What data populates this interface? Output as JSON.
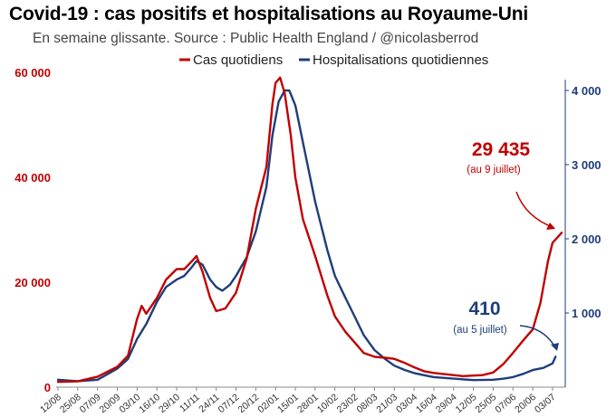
{
  "header": {
    "title": "Covid-19 : cas positifs et hospitalisations au Royaume-Uni",
    "subtitle": "En semaine glissante. Source : Public Health England / @nicolasberrod"
  },
  "colors": {
    "cases": "#c00000",
    "hosp": "#1f3d7a"
  },
  "chart_data": {
    "type": "line",
    "title": "Covid-19 : cas positifs et hospitalisations au Royaume-Uni",
    "subtitle": "En semaine glissante. Source : Public Health England / @nicolasberrod",
    "x_tick_labels": [
      "12/08",
      "25/08",
      "07/09",
      "20/09",
      "03/10",
      "16/10",
      "29/10",
      "11/11",
      "24/11",
      "07/12",
      "20/12",
      "02/01",
      "15/01",
      "28/01",
      "10/02",
      "23/02",
      "08/03",
      "21/03",
      "03/04",
      "16/04",
      "29/04",
      "12/05",
      "25/05",
      "07/06",
      "20/06",
      "03/07"
    ],
    "left_axis": {
      "ticks": [
        0,
        20000,
        40000,
        60000
      ],
      "tick_labels": [
        "0",
        "20 000",
        "40 000",
        "60 000"
      ],
      "range": [
        0,
        60000
      ]
    },
    "right_axis": {
      "ticks": [
        1000,
        2000,
        3000,
        4000
      ],
      "tick_labels": [
        "1 000",
        "2 000",
        "3 000",
        "4 000"
      ],
      "range": [
        0,
        4000
      ]
    },
    "legend": {
      "placement": "top",
      "entries": [
        "Cas quotidiens",
        "Hospitalisations quotidiennes"
      ]
    },
    "series": [
      {
        "name": "Cas quotidiens",
        "axis": "left",
        "color": "#c00000",
        "points": [
          [
            "12/08",
            1000
          ],
          [
            "25/08",
            1100
          ],
          [
            "07/09",
            2000
          ],
          [
            "20/09",
            3900
          ],
          [
            "27/09",
            6000
          ],
          [
            "03/10",
            13000
          ],
          [
            "06/10",
            15500
          ],
          [
            "09/10",
            14000
          ],
          [
            "16/10",
            17000
          ],
          [
            "22/10",
            20500
          ],
          [
            "29/10",
            22500
          ],
          [
            "03/11",
            22500
          ],
          [
            "08/11",
            24000
          ],
          [
            "11/11",
            25000
          ],
          [
            "15/11",
            22000
          ],
          [
            "20/11",
            17000
          ],
          [
            "24/11",
            14500
          ],
          [
            "30/11",
            15000
          ],
          [
            "07/12",
            18000
          ],
          [
            "14/12",
            24500
          ],
          [
            "20/12",
            34000
          ],
          [
            "27/12",
            42000
          ],
          [
            "31/12",
            54000
          ],
          [
            "02/01",
            58000
          ],
          [
            "05/01",
            59000
          ],
          [
            "08/01",
            56000
          ],
          [
            "12/01",
            48000
          ],
          [
            "15/01",
            40000
          ],
          [
            "20/01",
            32000
          ],
          [
            "28/01",
            25000
          ],
          [
            "05/02",
            17500
          ],
          [
            "10/02",
            13500
          ],
          [
            "17/02",
            10500
          ],
          [
            "23/02",
            8500
          ],
          [
            "01/03",
            6500
          ],
          [
            "08/03",
            5800
          ],
          [
            "15/03",
            5600
          ],
          [
            "21/03",
            5400
          ],
          [
            "28/03",
            4600
          ],
          [
            "03/04",
            3800
          ],
          [
            "10/04",
            3000
          ],
          [
            "16/04",
            2700
          ],
          [
            "29/04",
            2300
          ],
          [
            "05/05",
            2100
          ],
          [
            "12/05",
            2200
          ],
          [
            "18/05",
            2300
          ],
          [
            "25/05",
            2800
          ],
          [
            "01/06",
            4500
          ],
          [
            "07/06",
            6500
          ],
          [
            "14/06",
            9000
          ],
          [
            "20/06",
            11000
          ],
          [
            "25/06",
            16000
          ],
          [
            "30/06",
            24000
          ],
          [
            "03/07",
            27500
          ],
          [
            "09/07",
            29435
          ]
        ]
      },
      {
        "name": "Hospitalisations quotidiennes",
        "axis": "right",
        "color": "#1f3d7a",
        "points": [
          [
            "12/08",
            100
          ],
          [
            "25/08",
            80
          ],
          [
            "07/09",
            100
          ],
          [
            "20/09",
            250
          ],
          [
            "27/09",
            380
          ],
          [
            "03/10",
            650
          ],
          [
            "09/10",
            850
          ],
          [
            "16/10",
            1150
          ],
          [
            "22/10",
            1350
          ],
          [
            "29/10",
            1450
          ],
          [
            "03/11",
            1500
          ],
          [
            "08/11",
            1620
          ],
          [
            "11/11",
            1700
          ],
          [
            "15/11",
            1650
          ],
          [
            "20/11",
            1450
          ],
          [
            "24/11",
            1350
          ],
          [
            "28/11",
            1300
          ],
          [
            "03/12",
            1380
          ],
          [
            "07/12",
            1500
          ],
          [
            "14/12",
            1750
          ],
          [
            "20/12",
            2100
          ],
          [
            "27/12",
            2700
          ],
          [
            "31/12",
            3400
          ],
          [
            "04/01",
            3850
          ],
          [
            "08/01",
            4000
          ],
          [
            "11/01",
            4000
          ],
          [
            "15/01",
            3800
          ],
          [
            "20/01",
            3300
          ],
          [
            "28/01",
            2500
          ],
          [
            "05/02",
            1850
          ],
          [
            "10/02",
            1500
          ],
          [
            "17/02",
            1200
          ],
          [
            "23/02",
            950
          ],
          [
            "01/03",
            700
          ],
          [
            "08/03",
            500
          ],
          [
            "15/03",
            380
          ],
          [
            "21/03",
            290
          ],
          [
            "28/03",
            230
          ],
          [
            "03/04",
            190
          ],
          [
            "10/04",
            160
          ],
          [
            "16/04",
            135
          ],
          [
            "29/04",
            115
          ],
          [
            "12/05",
            95
          ],
          [
            "25/05",
            100
          ],
          [
            "01/06",
            115
          ],
          [
            "07/06",
            135
          ],
          [
            "14/06",
            180
          ],
          [
            "20/06",
            230
          ],
          [
            "27/06",
            260
          ],
          [
            "03/07",
            320
          ],
          [
            "05/07",
            410
          ]
        ]
      }
    ],
    "annotations": [
      {
        "series": "Cas quotidiens",
        "value": "29 435",
        "note": "(au 9 juillet)"
      },
      {
        "series": "Hospitalisations quotidiennes",
        "value": "410",
        "note": "(au 5 juillet)"
      }
    ]
  }
}
